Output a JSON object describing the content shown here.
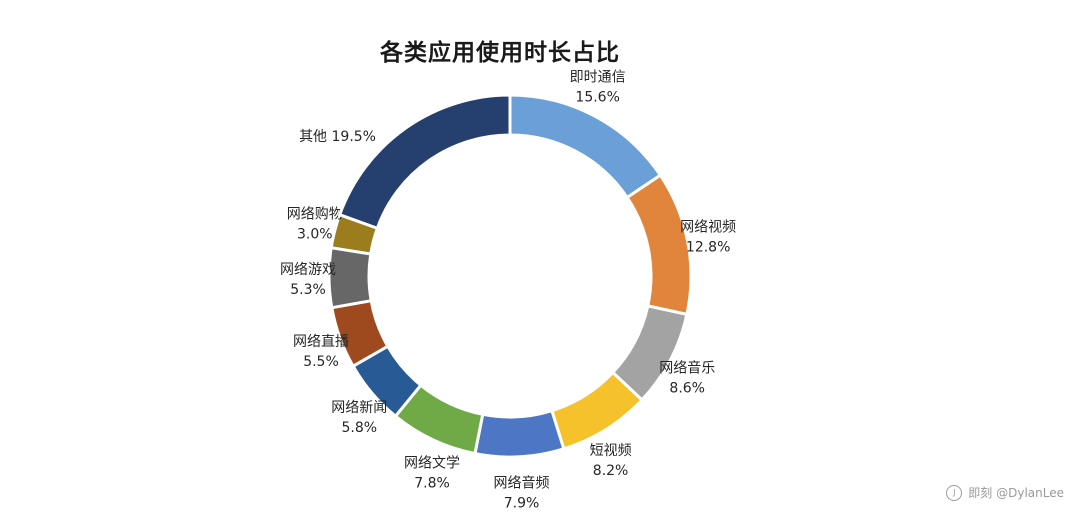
{
  "chart_data": {
    "type": "pie",
    "title": "各类应用使用时长占比",
    "unit": "%",
    "slices": [
      {
        "label": "即时通信",
        "value": 15.6,
        "display": "15.6%",
        "color": "#6a9fd8"
      },
      {
        "label": "网络视频",
        "value": 12.8,
        "display": "12.8%",
        "color": "#e1853c"
      },
      {
        "label": "网络音乐",
        "value": 8.6,
        "display": "8.6%",
        "color": "#a3a3a3"
      },
      {
        "label": "短视频",
        "value": 8.2,
        "display": "8.2%",
        "color": "#f6c22b"
      },
      {
        "label": "网络音频",
        "value": 7.9,
        "display": "7.9%",
        "color": "#4d76c4"
      },
      {
        "label": "网络文学",
        "value": 7.8,
        "display": "7.8%",
        "color": "#70aa47"
      },
      {
        "label": "网络新闻",
        "value": 5.8,
        "display": "5.8%",
        "color": "#285b96"
      },
      {
        "label": "网络直播",
        "value": 5.5,
        "display": "5.5%",
        "color": "#9e4a1e"
      },
      {
        "label": "网络游戏",
        "value": 5.3,
        "display": "5.3%",
        "color": "#676767"
      },
      {
        "label": "网络购物",
        "value": 3.0,
        "display": "3.0%",
        "color": "#9b7d1e"
      },
      {
        "label": "其他",
        "value": 19.5,
        "display": "19.5%",
        "color": "#25406e"
      }
    ]
  },
  "watermark": {
    "text": "即刻 @DylanLee"
  }
}
